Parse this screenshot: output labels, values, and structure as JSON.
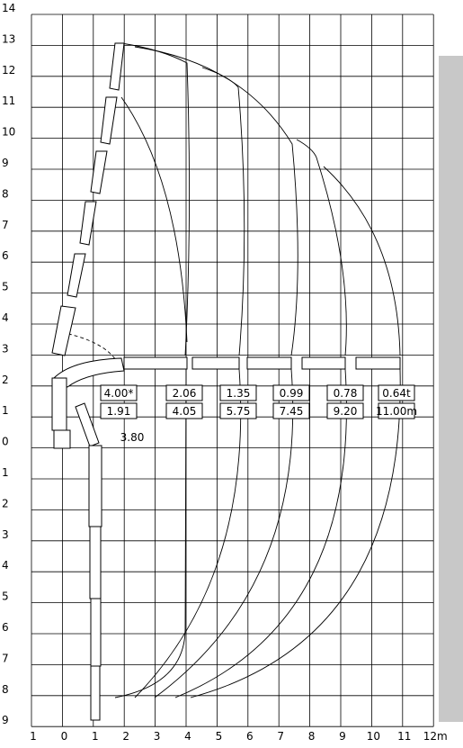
{
  "y_axis_labels": [
    "14",
    "13",
    "12",
    "11",
    "10",
    "9",
    "8",
    "7",
    "6",
    "5",
    "4",
    "3",
    "2",
    "1",
    "0",
    "1",
    "2",
    "3",
    "4",
    "5",
    "6",
    "7",
    "8",
    "9"
  ],
  "x_axis_labels": [
    "1",
    "0",
    "1",
    "2",
    "3",
    "4",
    "5",
    "6",
    "7",
    "8",
    "9",
    "10",
    "11",
    "12m"
  ],
  "load_table": [
    {
      "load": "4.00*",
      "reach": "1.91"
    },
    {
      "load": "2.06",
      "reach": "4.05"
    },
    {
      "load": "1.35",
      "reach": "5.75"
    },
    {
      "load": "0.99",
      "reach": "7.45"
    },
    {
      "load": "0.78",
      "reach": "9.20"
    },
    {
      "load": "0.64t",
      "reach": "11.00m"
    }
  ],
  "annotation": "3.80"
}
